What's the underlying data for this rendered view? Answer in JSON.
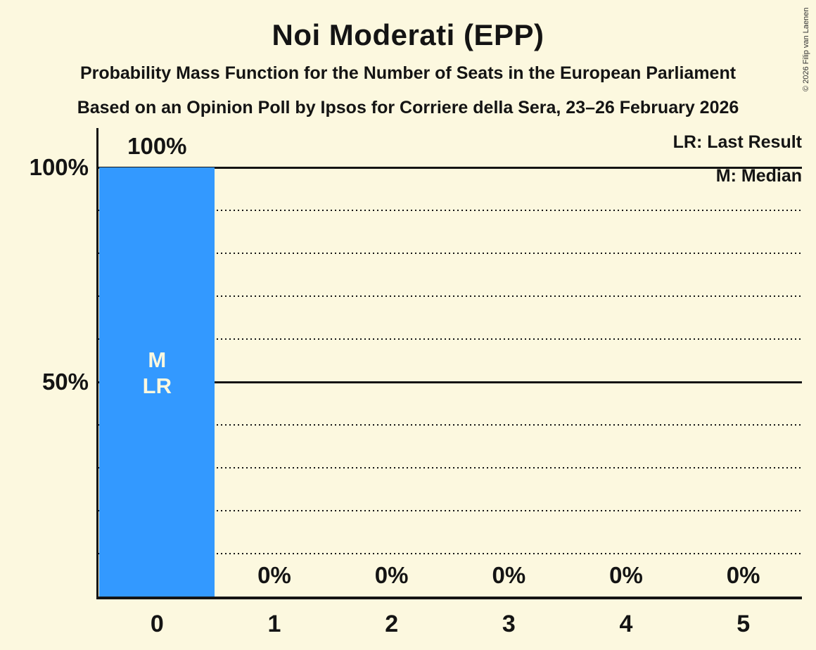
{
  "title": "Noi Moderati (EPP)",
  "subtitles": [
    "Probability Mass Function for the Number of Seats in the European Parliament",
    "Based on an Opinion Poll by Ipsos for Corriere della Sera, 23–26 February 2026"
  ],
  "copyright": "© 2026 Filip van Laenen",
  "legend": {
    "items": [
      "LR: Last Result",
      "M: Median"
    ]
  },
  "colors": {
    "background": "#fcf8df",
    "bar": "#3399ff",
    "text": "#141414",
    "bar_label": "#fcf8df"
  },
  "chart_data": {
    "type": "bar",
    "title": "Noi Moderati (EPP)",
    "categories": [
      "0",
      "1",
      "2",
      "3",
      "4",
      "5"
    ],
    "values": [
      100,
      0,
      0,
      0,
      0,
      0
    ],
    "value_labels": [
      "100%",
      "0%",
      "0%",
      "0%",
      "0%",
      "0%"
    ],
    "ylim": [
      0,
      100
    ],
    "yticks": [
      {
        "pct": 100,
        "label": "100%"
      },
      {
        "pct": 50,
        "label": "50%"
      }
    ],
    "gridlines": {
      "solid_pcts": [
        100,
        50
      ],
      "dotted_pcts": [
        90,
        80,
        70,
        60,
        40,
        30,
        20,
        10
      ]
    },
    "legend_position": "top-right",
    "bar_annotations": [
      {
        "category": "0",
        "lines": [
          "M",
          "LR"
        ]
      }
    ]
  }
}
